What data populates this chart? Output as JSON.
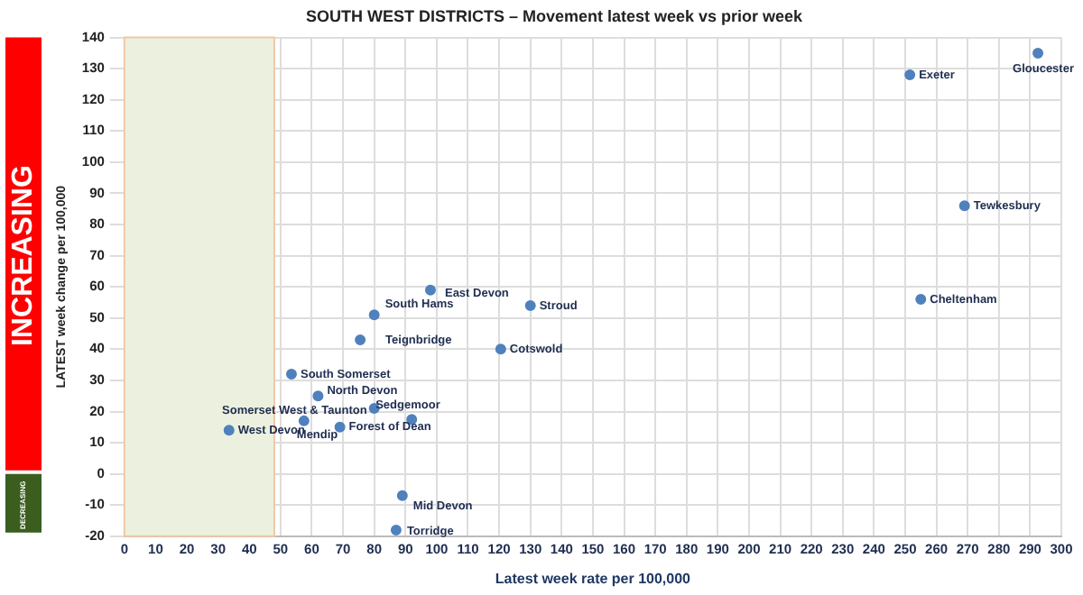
{
  "chart_data": {
    "type": "scatter",
    "title": "SOUTH WEST DISTRICTS – Movement latest week vs prior week",
    "xlabel": "Latest week rate per 100,000",
    "ylabel": "LATEST week change per 100,000",
    "annotations": [
      "INCREASING",
      "DECREASING"
    ],
    "series": [
      {
        "color": "#4f81bd",
        "x": [
          98,
          80,
          75.5,
          53.5,
          62,
          80,
          92,
          33.5,
          57.5,
          69,
          89,
          87,
          120.5,
          130,
          251.5,
          292.5,
          269,
          255
        ],
        "values": [
          59,
          51,
          43,
          32,
          25,
          21,
          17.5,
          14,
          17,
          15,
          -7,
          -18,
          40,
          54,
          128,
          135,
          86,
          56
        ],
        "value_labels": [
          "East Devon",
          "South Hams",
          "Teignbridge",
          "South Somerset",
          "North Devon",
          "Somerset West & Taunton",
          "Sedgemoor",
          "West Devon",
          "Mendip",
          "Forest of Dean",
          "Mid Devon",
          "Torridge",
          "Cotswold",
          "Stroud",
          "Exeter",
          "Gloucester",
          "Tewkesbury",
          "Cheltenham"
        ]
      }
    ],
    "bands": [
      {
        "axis": "x",
        "from": 0,
        "to": 48,
        "color": "#ebf1de"
      }
    ],
    "xlim": [
      0,
      300
    ],
    "xticks": [
      0,
      10,
      20,
      30,
      40,
      50,
      60,
      70,
      80,
      90,
      100,
      110,
      120,
      130,
      140,
      150,
      160,
      170,
      180,
      190,
      200,
      210,
      220,
      230,
      240,
      250,
      260,
      270,
      280,
      290,
      300
    ],
    "ylim": [
      -20,
      140
    ],
    "yticks": [
      -20,
      -10,
      0,
      10,
      20,
      30,
      40,
      50,
      60,
      70,
      80,
      90,
      100,
      110,
      120,
      130,
      140
    ],
    "grid": true,
    "legend": false,
    "marker": "circle"
  }
}
